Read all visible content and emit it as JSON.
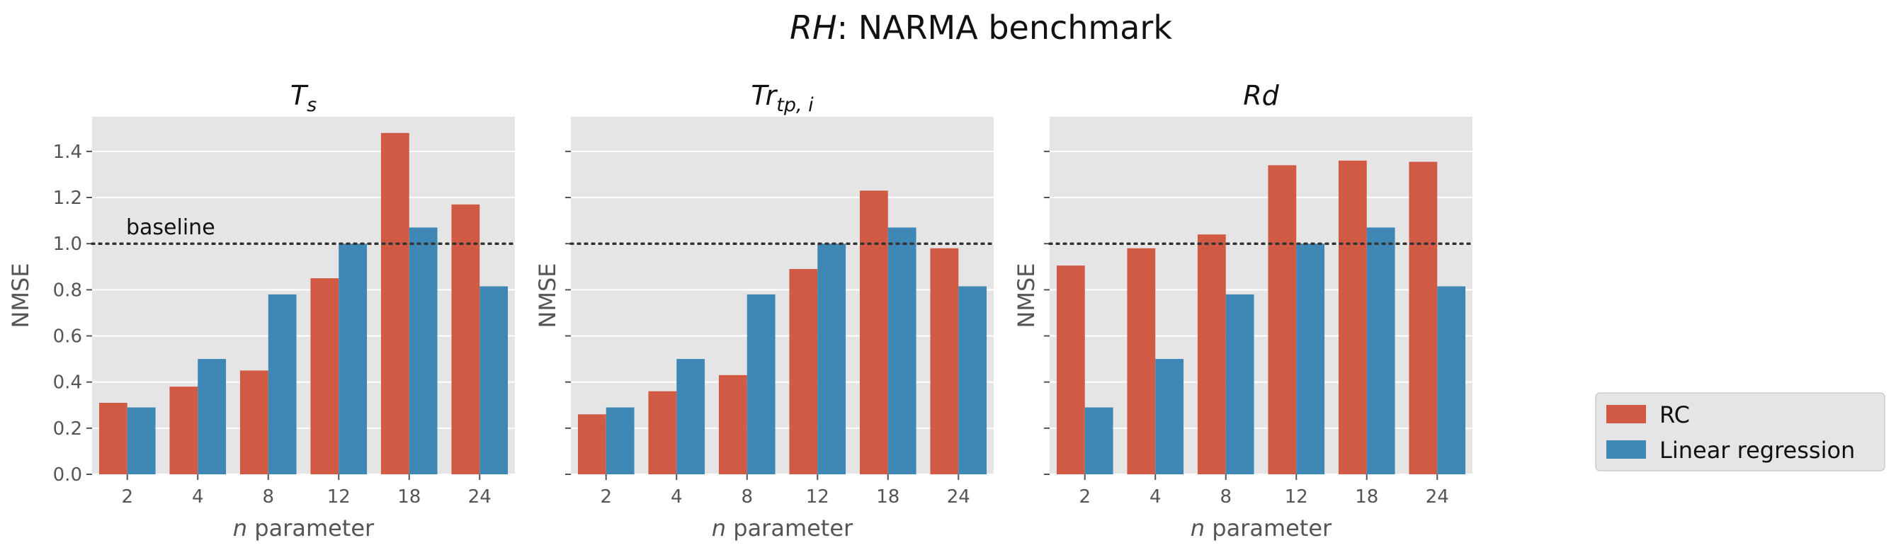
{
  "chart_data": {
    "type": "bar",
    "title_prefix": "RH",
    "title_suffix": ": NARMA benchmark",
    "xlabel_var": "n",
    "xlabel_rest": " parameter",
    "ylabel": "NMSE",
    "ylim": [
      0,
      1.55
    ],
    "yticks": [
      "0.0",
      "0.2",
      "0.4",
      "0.6",
      "0.8",
      "1.0",
      "1.2",
      "1.4"
    ],
    "categories": [
      "2",
      "4",
      "8",
      "12",
      "18",
      "24"
    ],
    "baseline": {
      "value": 1.0,
      "label": "baseline"
    },
    "legend": {
      "position": "lower-right",
      "entries": [
        "RC",
        "Linear regression"
      ]
    },
    "colors": {
      "RC": "#d15a45",
      "Linear regression": "#3f88b5",
      "panel_bg": "#e5e5e5",
      "grid": "#ffffff"
    },
    "grid": true,
    "panels": [
      {
        "title_main": "T",
        "title_sub": "s",
        "series": [
          {
            "name": "RC",
            "values": [
              0.31,
              0.38,
              0.45,
              0.85,
              1.48,
              1.17
            ]
          },
          {
            "name": "Linear regression",
            "values": [
              0.29,
              0.5,
              0.78,
              1.0,
              1.07,
              0.815
            ]
          }
        ]
      },
      {
        "title_main": "Tr",
        "title_sub": "tp, i",
        "series": [
          {
            "name": "RC",
            "values": [
              0.26,
              0.36,
              0.43,
              0.89,
              1.23,
              0.98
            ]
          },
          {
            "name": "Linear regression",
            "values": [
              0.29,
              0.5,
              0.78,
              1.0,
              1.07,
              0.815
            ]
          }
        ]
      },
      {
        "title_main": "Rd",
        "title_sub": "",
        "series": [
          {
            "name": "RC",
            "values": [
              0.905,
              0.98,
              1.04,
              1.34,
              1.36,
              1.355
            ]
          },
          {
            "name": "Linear regression",
            "values": [
              0.29,
              0.5,
              0.78,
              1.0,
              1.07,
              0.815
            ]
          }
        ]
      }
    ]
  }
}
